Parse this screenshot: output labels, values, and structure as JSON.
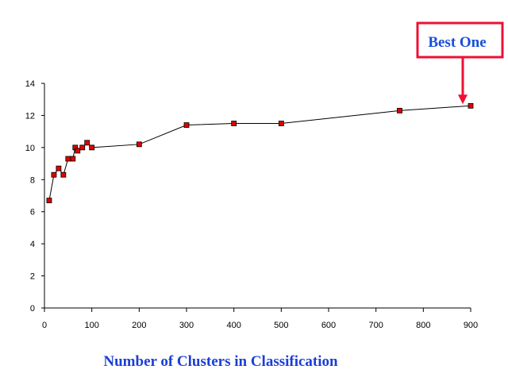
{
  "chart_data": {
    "type": "line",
    "title": "",
    "xlabel": "Number of Clusters in Classification",
    "ylabel": "",
    "xlim": [
      0,
      900
    ],
    "ylim": [
      0,
      14
    ],
    "xticks": [
      0,
      100,
      200,
      300,
      400,
      500,
      600,
      700,
      800,
      900
    ],
    "yticks": [
      0,
      2,
      4,
      6,
      8,
      10,
      12,
      14
    ],
    "grid": false,
    "series": [
      {
        "points": [
          {
            "x": 10,
            "y": 6.7
          },
          {
            "x": 20,
            "y": 8.3
          },
          {
            "x": 30,
            "y": 8.7
          },
          {
            "x": 40,
            "y": 8.3
          },
          {
            "x": 50,
            "y": 9.3
          },
          {
            "x": 60,
            "y": 9.3
          },
          {
            "x": 65,
            "y": 10.0
          },
          {
            "x": 70,
            "y": 9.8
          },
          {
            "x": 80,
            "y": 10.0
          },
          {
            "x": 90,
            "y": 10.3
          },
          {
            "x": 100,
            "y": 10.0
          },
          {
            "x": 200,
            "y": 10.2
          },
          {
            "x": 300,
            "y": 11.4
          },
          {
            "x": 400,
            "y": 11.5
          },
          {
            "x": 500,
            "y": 11.5
          },
          {
            "x": 750,
            "y": 12.3
          },
          {
            "x": 900,
            "y": 12.6
          }
        ]
      }
    ],
    "annotations": [
      {
        "text": "Best One",
        "target": {
          "x": 900,
          "y": 12.6
        }
      }
    ]
  },
  "colors": {
    "marker_fill": "#e00000",
    "line": "#000000",
    "axis": "#000000",
    "xlabel_text": "#1a3fd6",
    "callout_border": "#ee1133",
    "callout_text": "#1a4fd6",
    "callout_arrow": "#ee1133"
  }
}
